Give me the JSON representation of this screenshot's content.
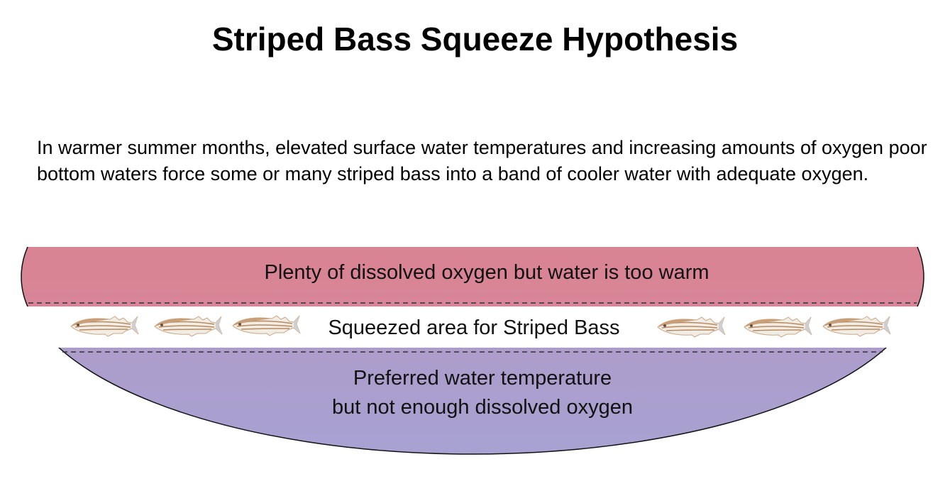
{
  "title": "Striped Bass Squeeze Hypothesis",
  "description": "In warmer summer months, elevated surface water temperatures and increasing amounts of oxygen poor bottom waters force some or many striped bass into a band of cooler water with adequate oxygen.",
  "diagram": {
    "top_zone": {
      "label": "Plenty of dissolved oxygen but water is too warm",
      "color": "#e08088"
    },
    "middle_zone": {
      "label": "Squeezed area for Striped Bass",
      "fish_icon": "striped-bass-icon",
      "fish_count": 6
    },
    "bottom_zone": {
      "line1": "Preferred water temperature",
      "line2": "but not enough dissolved oxygen",
      "color": "#b290bb"
    }
  }
}
